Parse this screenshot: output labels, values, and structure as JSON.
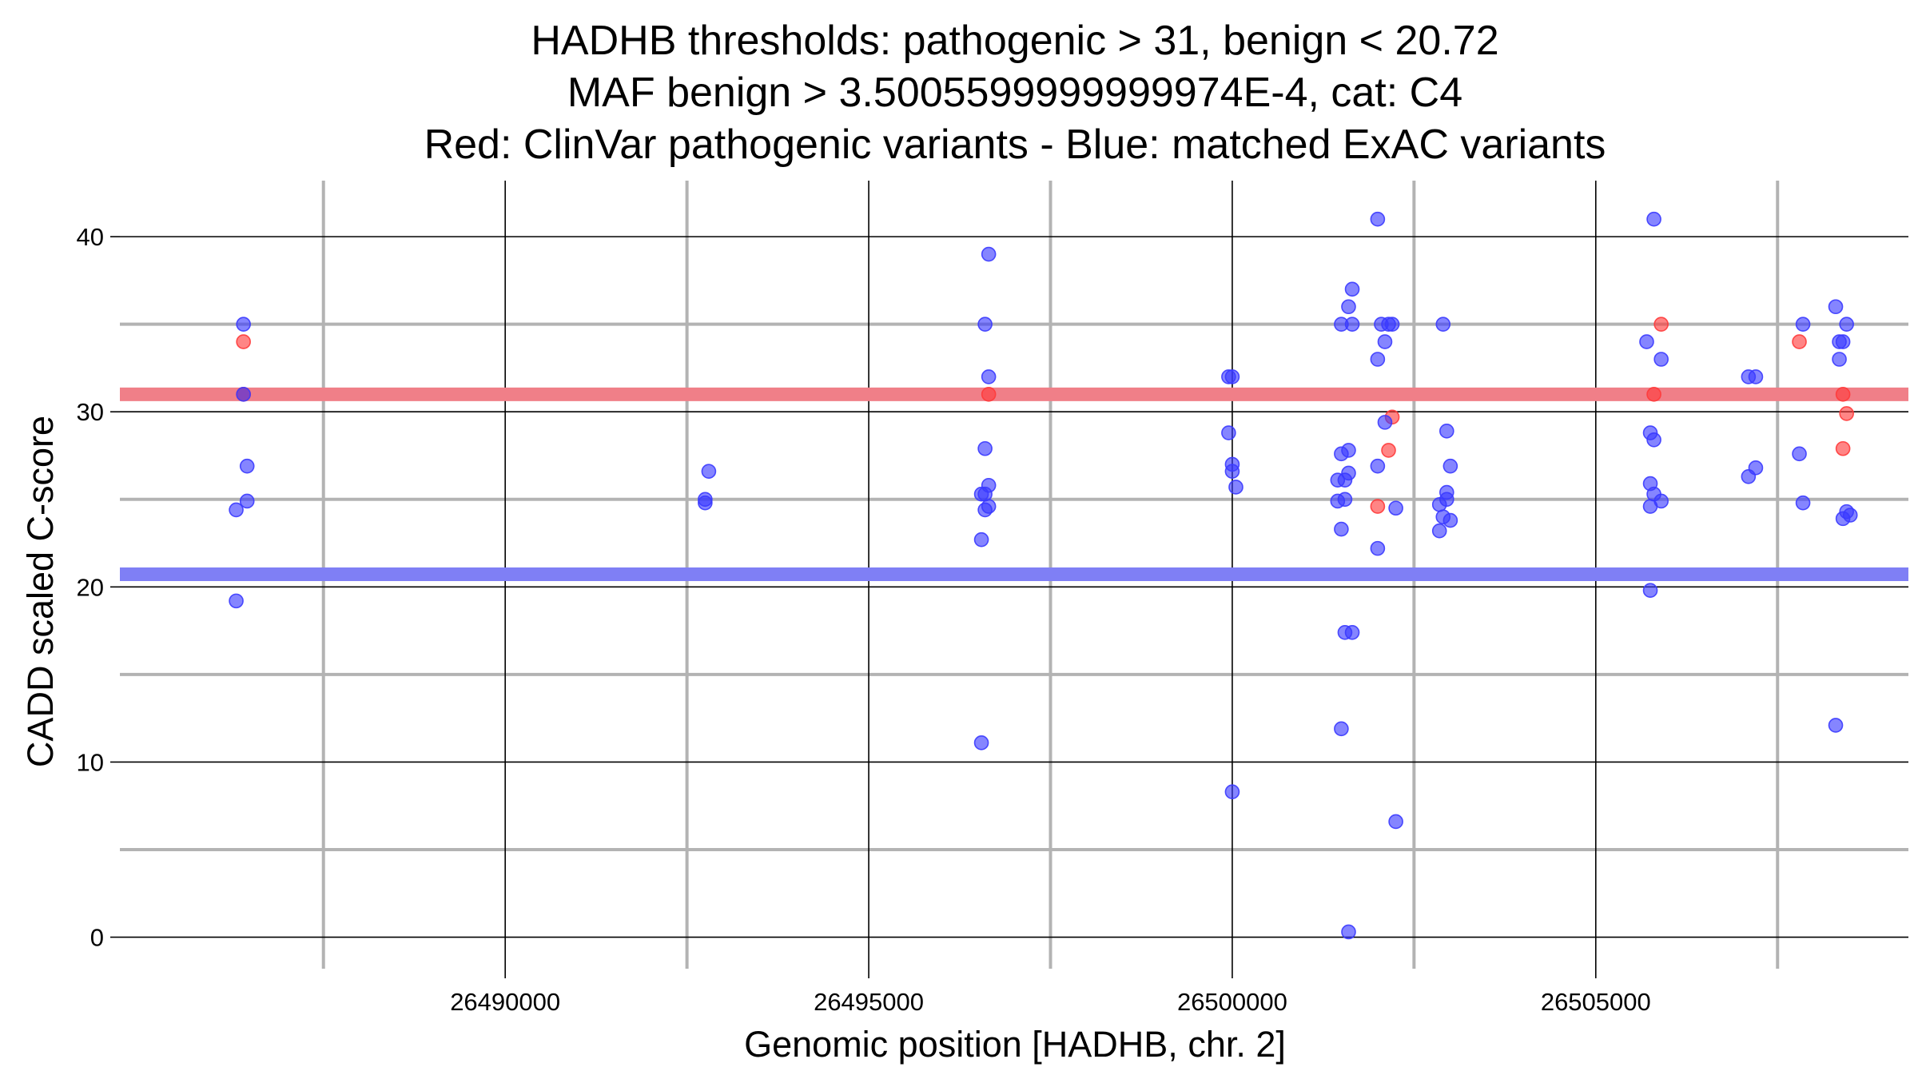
{
  "chart_data": {
    "type": "scatter",
    "title_lines": [
      "HADHB thresholds: pathogenic > 31, benign < 20.72",
      "MAF benign > 3.5005599999999974E-4, cat: C4",
      "Red: ClinVar pathogenic variants - Blue: matched ExAC variants"
    ],
    "xlabel": "Genomic position [HADHB, chr. 2]",
    "ylabel": "CADD scaled C-score",
    "xlim": [
      26484700,
      26509300
    ],
    "ylim": [
      -1.8,
      43.2
    ],
    "x_major_ticks": [
      26490000,
      26495000,
      26500000,
      26505000
    ],
    "x_tick_labels": [
      "26490000",
      "26495000",
      "26500000",
      "26505000"
    ],
    "x_minor_ticks": [
      26487500,
      26492500,
      26497500,
      26502500,
      26507500
    ],
    "y_major_ticks": [
      0,
      10,
      20,
      30,
      40
    ],
    "y_tick_labels": [
      "0",
      "10",
      "20",
      "30",
      "40"
    ],
    "y_minor_ticks": [
      5,
      15,
      25,
      35
    ],
    "grid": true,
    "thresholds": [
      {
        "value": 31,
        "color": "#f07f88"
      },
      {
        "value": 20.72,
        "color": "#7f7ff5"
      }
    ],
    "colors": {
      "pathogenic": "#ff3a3a",
      "benign": "#3a3aff"
    },
    "series": [
      {
        "key": "pathogenic",
        "points": [
          [
            26486400,
            34.0
          ],
          [
            26486400,
            31.0
          ],
          [
            26496650,
            31.0
          ],
          [
            26502000,
            24.6
          ],
          [
            26502150,
            27.8
          ],
          [
            26502200,
            29.7
          ],
          [
            26505800,
            31.0
          ],
          [
            26505900,
            35.0
          ],
          [
            26507800,
            34.0
          ],
          [
            26508400,
            31.0
          ],
          [
            26508450,
            29.9
          ],
          [
            26508400,
            27.9
          ]
        ]
      },
      {
        "key": "benign",
        "points": [
          [
            26486400,
            35.0
          ],
          [
            26486400,
            31.0
          ],
          [
            26486450,
            26.9
          ],
          [
            26486450,
            24.9
          ],
          [
            26486300,
            24.4
          ],
          [
            26486300,
            19.2
          ],
          [
            26492800,
            26.6
          ],
          [
            26492750,
            25.0
          ],
          [
            26492750,
            24.8
          ],
          [
            26496650,
            39.0
          ],
          [
            26496600,
            35.0
          ],
          [
            26496650,
            32.0
          ],
          [
            26496600,
            27.9
          ],
          [
            26496650,
            25.8
          ],
          [
            26496550,
            25.3
          ],
          [
            26496600,
            25.3
          ],
          [
            26496650,
            24.6
          ],
          [
            26496600,
            24.4
          ],
          [
            26496550,
            22.7
          ],
          [
            26496550,
            11.1
          ],
          [
            26499950,
            32.0
          ],
          [
            26500000,
            32.0
          ],
          [
            26499950,
            28.8
          ],
          [
            26500000,
            27.0
          ],
          [
            26500000,
            26.6
          ],
          [
            26500050,
            25.7
          ],
          [
            26500000,
            8.3
          ],
          [
            26502000,
            41.0
          ],
          [
            26501650,
            37.0
          ],
          [
            26501600,
            36.0
          ],
          [
            26501500,
            35.0
          ],
          [
            26501650,
            35.0
          ],
          [
            26502050,
            35.0
          ],
          [
            26502150,
            35.0
          ],
          [
            26502200,
            35.0
          ],
          [
            26502100,
            34.0
          ],
          [
            26502000,
            33.0
          ],
          [
            26502100,
            29.4
          ],
          [
            26501600,
            27.8
          ],
          [
            26501500,
            27.6
          ],
          [
            26502000,
            26.9
          ],
          [
            26501600,
            26.5
          ],
          [
            26501450,
            26.1
          ],
          [
            26501550,
            26.1
          ],
          [
            26501450,
            24.9
          ],
          [
            26501550,
            25.0
          ],
          [
            26502250,
            24.5
          ],
          [
            26501500,
            23.3
          ],
          [
            26502000,
            22.2
          ],
          [
            26501550,
            17.4
          ],
          [
            26501650,
            17.4
          ],
          [
            26501500,
            11.9
          ],
          [
            26502250,
            6.6
          ],
          [
            26501600,
            0.3
          ],
          [
            26502900,
            35.0
          ],
          [
            26502950,
            28.9
          ],
          [
            26503000,
            26.9
          ],
          [
            26502950,
            25.4
          ],
          [
            26502950,
            25.0
          ],
          [
            26502850,
            24.7
          ],
          [
            26502900,
            24.0
          ],
          [
            26503000,
            23.8
          ],
          [
            26502850,
            23.2
          ],
          [
            26505800,
            41.0
          ],
          [
            26505700,
            34.0
          ],
          [
            26505900,
            33.0
          ],
          [
            26505750,
            28.8
          ],
          [
            26505800,
            28.4
          ],
          [
            26505750,
            25.9
          ],
          [
            26505800,
            25.3
          ],
          [
            26505900,
            24.9
          ],
          [
            26505750,
            24.6
          ],
          [
            26505750,
            19.8
          ],
          [
            26507100,
            32.0
          ],
          [
            26507200,
            32.0
          ],
          [
            26507200,
            26.8
          ],
          [
            26507100,
            26.3
          ],
          [
            26507850,
            35.0
          ],
          [
            26507800,
            27.6
          ],
          [
            26507850,
            24.8
          ],
          [
            26508300,
            36.0
          ],
          [
            26508450,
            35.0
          ],
          [
            26508350,
            34.0
          ],
          [
            26508400,
            34.0
          ],
          [
            26508350,
            33.0
          ],
          [
            26508450,
            24.3
          ],
          [
            26508500,
            24.1
          ],
          [
            26508400,
            23.9
          ],
          [
            26508300,
            12.1
          ]
        ]
      }
    ]
  }
}
